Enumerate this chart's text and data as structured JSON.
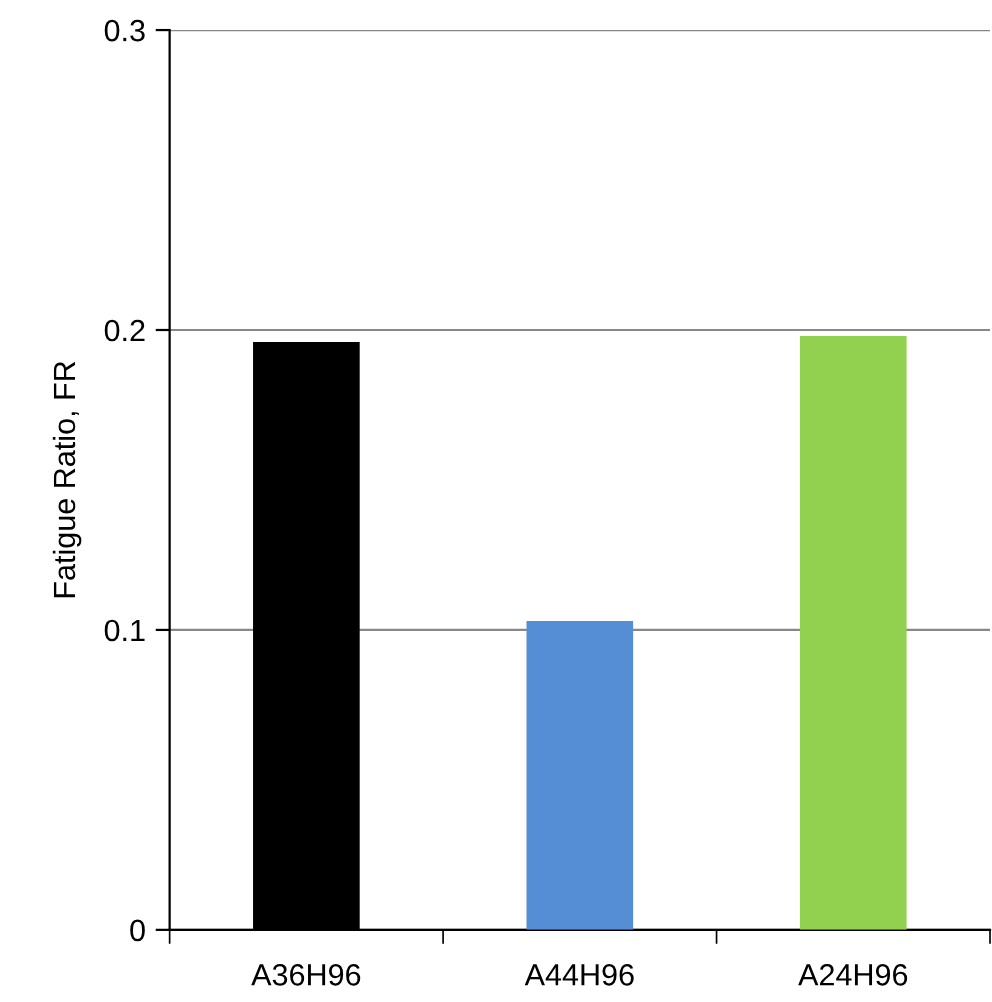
{
  "chart_data": {
    "type": "bar",
    "ylabel": "Fatigue Ratio, FR",
    "categories": [
      "A36H96",
      "A44H96",
      "A24H96"
    ],
    "values": [
      0.196,
      0.103,
      0.198
    ],
    "colors": [
      "#000000",
      "#558ed5",
      "#92d050"
    ],
    "ylim": [
      0,
      0.3
    ],
    "yticks": [
      0,
      0.1,
      0.2,
      0.3
    ],
    "grid": "y",
    "legend": false
  }
}
